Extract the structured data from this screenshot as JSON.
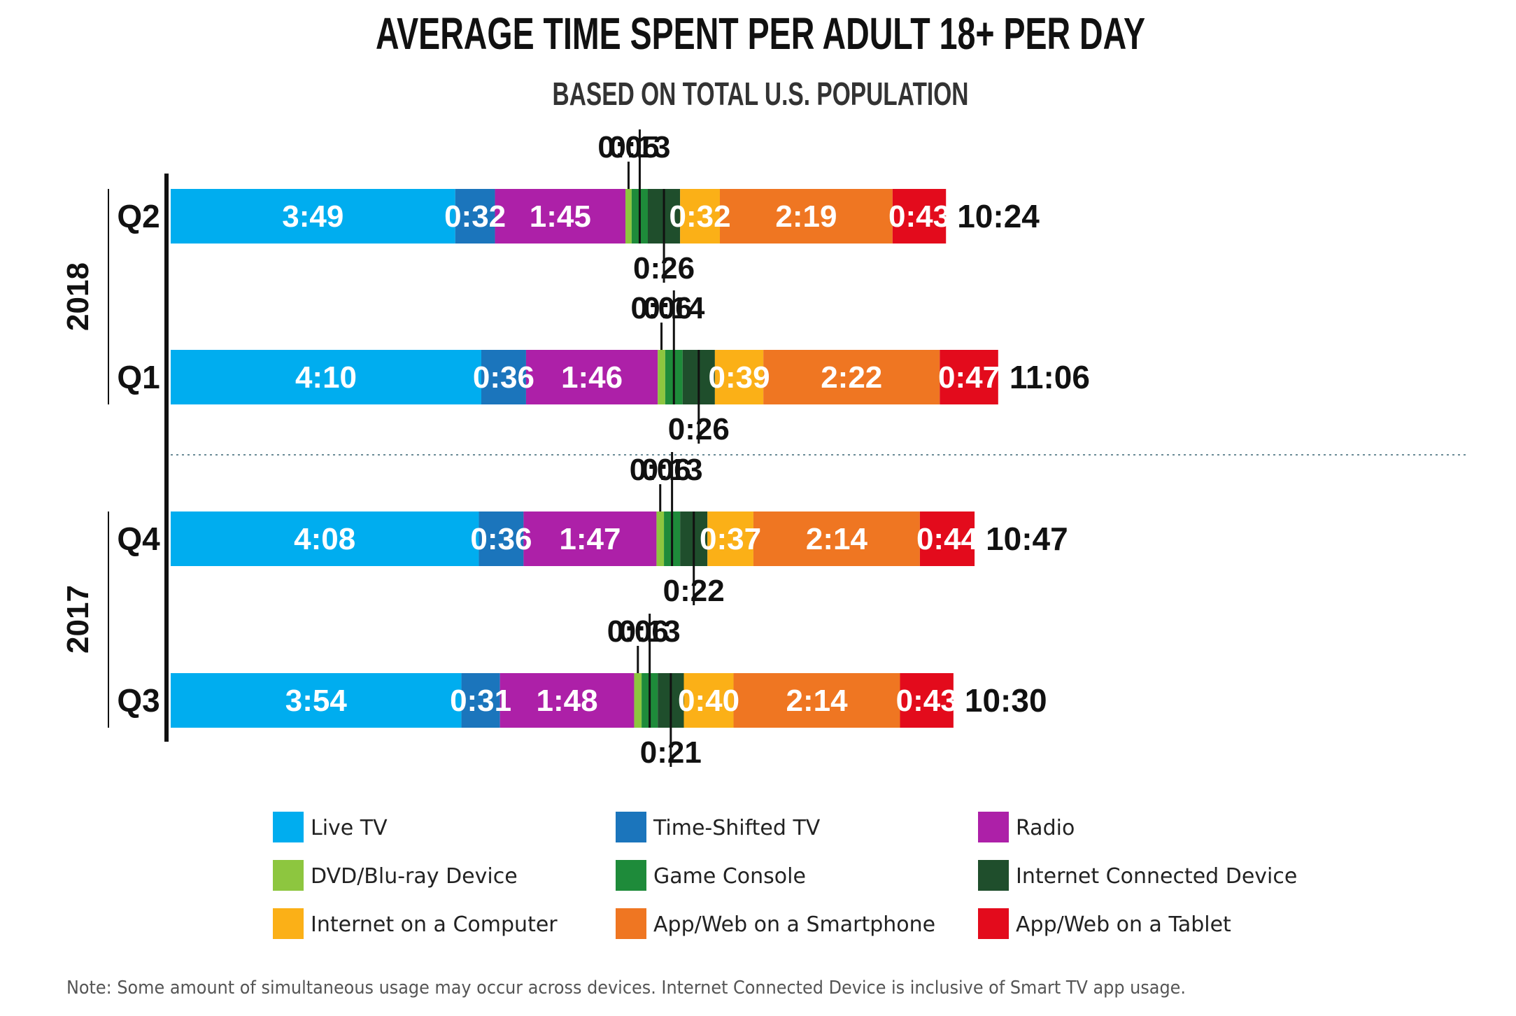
{
  "chart_data": {
    "type": "bar",
    "orientation": "horizontal",
    "stacked": true,
    "title": "AVERAGE TIME SPENT PER ADULT 18+ PER DAY",
    "subtitle": "BASED ON TOTAL U.S. POPULATION",
    "unit": "hours:minutes",
    "groups": [
      {
        "label": "2018",
        "categories": [
          "Q2",
          "Q1"
        ]
      },
      {
        "label": "2017",
        "categories": [
          "Q4",
          "Q3"
        ]
      }
    ],
    "categories": [
      "Q2",
      "Q1",
      "Q4",
      "Q3"
    ],
    "totals": [
      "10:24",
      "11:06",
      "10:47",
      "10:30"
    ],
    "series": [
      {
        "name": "Live TV",
        "color": "#00adef",
        "values": [
          "3:49",
          "4:10",
          "4:08",
          "3:54"
        ]
      },
      {
        "name": "Time-Shifted TV",
        "color": "#1b75bc",
        "values": [
          "0:32",
          "0:36",
          "0:36",
          "0:31"
        ]
      },
      {
        "name": "Radio",
        "color": "#ad20a8",
        "values": [
          "1:45",
          "1:46",
          "1:47",
          "1:48"
        ]
      },
      {
        "name": "DVD/Blu-ray Device",
        "color": "#8dc63f",
        "values": [
          "0:05",
          "0:06",
          "0:06",
          "0:06"
        ]
      },
      {
        "name": "Game Console",
        "color": "#1e8b3a",
        "values": [
          "0:13",
          "0:14",
          "0:13",
          "0:13"
        ]
      },
      {
        "name": "Internet Connected Device",
        "color": "#1f4e2c",
        "values": [
          "0:26",
          "0:26",
          "0:22",
          "0:21"
        ]
      },
      {
        "name": "Internet on a Computer",
        "color": "#fbb017",
        "values": [
          "0:32",
          "0:39",
          "0:37",
          "0:40"
        ]
      },
      {
        "name": "App/Web on a Smartphone",
        "color": "#ef7622",
        "values": [
          "2:19",
          "2:22",
          "2:14",
          "2:14"
        ]
      },
      {
        "name": "App/Web on a Tablet",
        "color": "#e30b1c",
        "values": [
          "0:43",
          "0:47",
          "0:44",
          "0:43"
        ]
      }
    ],
    "legend_position": "bottom",
    "grid": false
  },
  "note": "Note: Some amount of simultaneous usage may occur across devices. Internet Connected Device is inclusive of Smart TV app usage."
}
